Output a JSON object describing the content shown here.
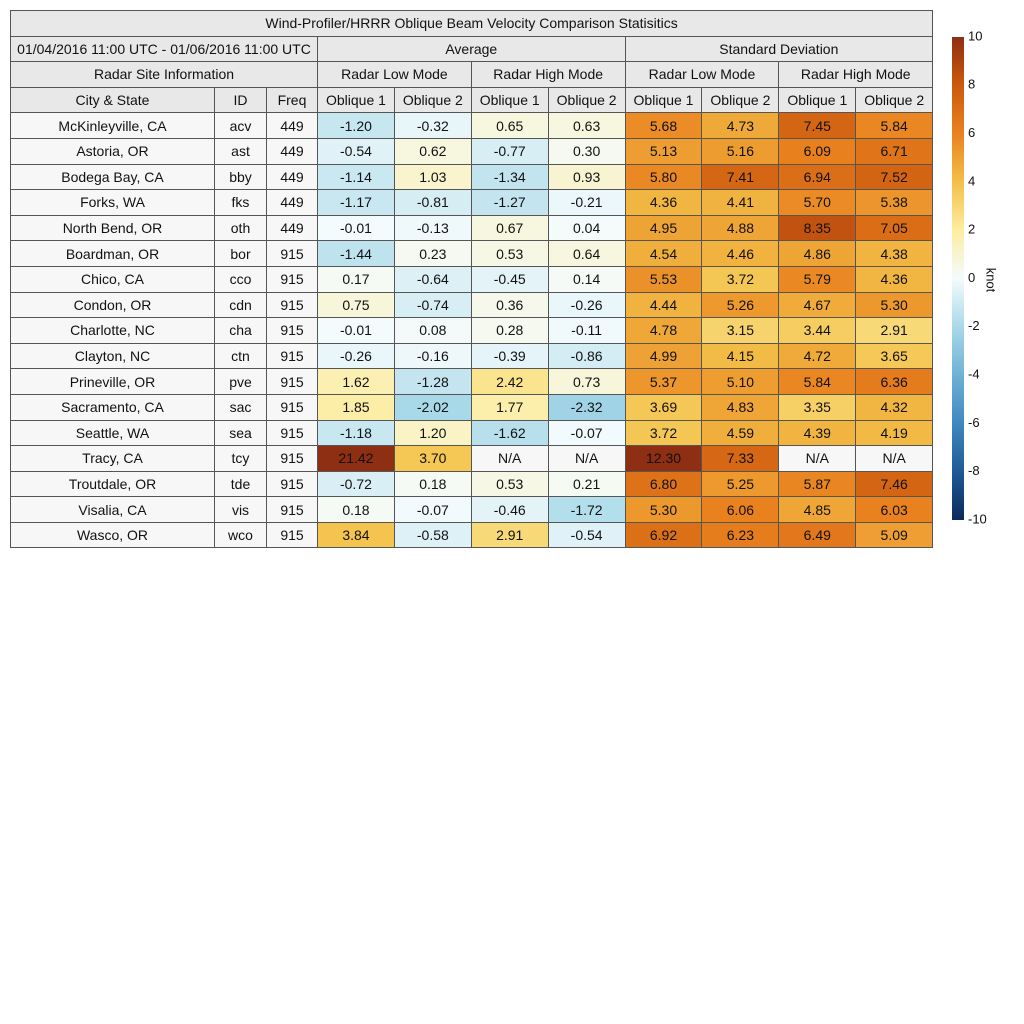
{
  "header": {
    "title": "Wind-Profiler/HRRR Oblique Beam Velocity Comparison Statisitics",
    "date_range": "01/04/2016 11:00 UTC - 01/06/2016 11:00 UTC",
    "groups": [
      "Average",
      "Standard Deviation"
    ],
    "site_info": "Radar Site Information",
    "modes": [
      "Radar Low Mode",
      "Radar High Mode",
      "Radar Low Mode",
      "Radar High Mode"
    ],
    "columns": [
      "City & State",
      "ID",
      "Freq",
      "Oblique 1",
      "Oblique 2",
      "Oblique 1",
      "Oblique 2",
      "Oblique 1",
      "Oblique 2",
      "Oblique 1",
      "Oblique 2"
    ]
  },
  "table": {
    "rows": [
      [
        "McKinleyville, CA",
        "acv",
        "449",
        "-1.20",
        "-0.32",
        "0.65",
        "0.63",
        "5.68",
        "4.73",
        "7.45",
        "5.84"
      ],
      [
        "Astoria, OR",
        "ast",
        "449",
        "-0.54",
        "0.62",
        "-0.77",
        "0.30",
        "5.13",
        "5.16",
        "6.09",
        "6.71"
      ],
      [
        "Bodega Bay, CA",
        "bby",
        "449",
        "-1.14",
        "1.03",
        "-1.34",
        "0.93",
        "5.80",
        "7.41",
        "6.94",
        "7.52"
      ],
      [
        "Forks, WA",
        "fks",
        "449",
        "-1.17",
        "-0.81",
        "-1.27",
        "-0.21",
        "4.36",
        "4.41",
        "5.70",
        "5.38"
      ],
      [
        "North Bend, OR",
        "oth",
        "449",
        "-0.01",
        "-0.13",
        "0.67",
        "0.04",
        "4.95",
        "4.88",
        "8.35",
        "7.05"
      ],
      [
        "Boardman, OR",
        "bor",
        "915",
        "-1.44",
        "0.23",
        "0.53",
        "0.64",
        "4.54",
        "4.46",
        "4.86",
        "4.38"
      ],
      [
        "Chico, CA",
        "cco",
        "915",
        "0.17",
        "-0.64",
        "-0.45",
        "0.14",
        "5.53",
        "3.72",
        "5.79",
        "4.36"
      ],
      [
        "Condon, OR",
        "cdn",
        "915",
        "0.75",
        "-0.74",
        "0.36",
        "-0.26",
        "4.44",
        "5.26",
        "4.67",
        "5.30"
      ],
      [
        "Charlotte, NC",
        "cha",
        "915",
        "-0.01",
        "0.08",
        "0.28",
        "-0.11",
        "4.78",
        "3.15",
        "3.44",
        "2.91"
      ],
      [
        "Clayton, NC",
        "ctn",
        "915",
        "-0.26",
        "-0.16",
        "-0.39",
        "-0.86",
        "4.99",
        "4.15",
        "4.72",
        "3.65"
      ],
      [
        "Prineville, OR",
        "pve",
        "915",
        "1.62",
        "-1.28",
        "2.42",
        "0.73",
        "5.37",
        "5.10",
        "5.84",
        "6.36"
      ],
      [
        "Sacramento, CA",
        "sac",
        "915",
        "1.85",
        "-2.02",
        "1.77",
        "-2.32",
        "3.69",
        "4.83",
        "3.35",
        "4.32"
      ],
      [
        "Seattle, WA",
        "sea",
        "915",
        "-1.18",
        "1.20",
        "-1.62",
        "-0.07",
        "3.72",
        "4.59",
        "4.39",
        "4.19"
      ],
      [
        "Tracy, CA",
        "tcy",
        "915",
        "21.42",
        "3.70",
        "N/A",
        "N/A",
        "12.30",
        "7.33",
        "N/A",
        "N/A"
      ],
      [
        "Troutdale, OR",
        "tde",
        "915",
        "-0.72",
        "0.18",
        "0.53",
        "0.21",
        "6.80",
        "5.25",
        "5.87",
        "7.46"
      ],
      [
        "Visalia, CA",
        "vis",
        "915",
        "0.18",
        "-0.07",
        "-0.46",
        "-1.72",
        "5.30",
        "6.06",
        "4.85",
        "6.03"
      ],
      [
        "Wasco, OR",
        "wco",
        "915",
        "3.84",
        "-0.58",
        "2.91",
        "-0.54",
        "6.92",
        "6.23",
        "6.49",
        "5.09"
      ]
    ]
  },
  "colorbar": {
    "label": "knot",
    "range": [
      -10,
      10
    ],
    "ticks": [
      -10,
      -8,
      -6,
      -4,
      -2,
      0,
      2,
      4,
      6,
      8,
      10
    ],
    "colors": [
      "#0b2a5b",
      "#1f5a96",
      "#3f88bf",
      "#6fb1d6",
      "#a9d9e8",
      "#f4fbfd",
      "#fdeda0",
      "#f3c048",
      "#e9821f",
      "#cc5a0e",
      "#8e2e12"
    ]
  }
}
